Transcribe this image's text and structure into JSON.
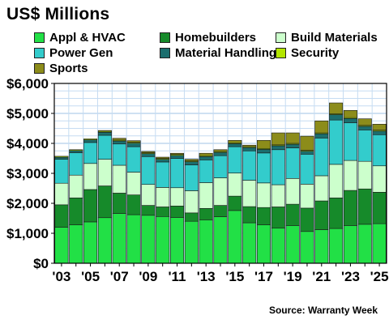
{
  "chart_data": {
    "type": "bar",
    "stacked": true,
    "title": "US$ Millions",
    "source": "Source: Warranty Week",
    "ylim": [
      0,
      6000
    ],
    "yticks": [
      0,
      1000,
      2000,
      3000,
      4000,
      5000,
      6000
    ],
    "ytick_labels": [
      "$0",
      "$1,000",
      "$2,000",
      "$3,000",
      "$4,000",
      "$5,000",
      "$6,000"
    ],
    "grid": true,
    "categories": [
      "2003",
      "2004",
      "2005",
      "2006",
      "2007",
      "2008",
      "2009",
      "2010",
      "2011",
      "2012",
      "2013",
      "2014",
      "2015",
      "2016",
      "2017",
      "2018",
      "2019",
      "2020",
      "2021",
      "2022",
      "2023",
      "2024",
      "2025"
    ],
    "xtick_labels": [
      "'03",
      "",
      "'05",
      "",
      "'07",
      "",
      "'09",
      "",
      "'11",
      "",
      "'13",
      "",
      "'15",
      "",
      "'17",
      "",
      "'19",
      "",
      "'21",
      "",
      "'23",
      "",
      "'25"
    ],
    "series": [
      {
        "name": "Appl & HVAC",
        "color": "#22e046",
        "values": [
          1200,
          1280,
          1380,
          1520,
          1660,
          1620,
          1600,
          1560,
          1530,
          1400,
          1450,
          1550,
          1760,
          1350,
          1280,
          1170,
          1260,
          1060,
          1120,
          1160,
          1260,
          1300,
          1320
        ]
      },
      {
        "name": "Homebuilders",
        "color": "#168a2a",
        "values": [
          750,
          900,
          1080,
          1060,
          680,
          660,
          330,
          320,
          380,
          280,
          380,
          380,
          480,
          540,
          580,
          710,
          710,
          780,
          960,
          1020,
          1170,
          1180,
          1050
        ]
      },
      {
        "name": "Build Materials",
        "color": "#ccffcc",
        "values": [
          720,
          760,
          870,
          890,
          930,
          760,
          700,
          650,
          610,
          740,
          860,
          920,
          770,
          880,
          820,
          740,
          860,
          800,
          840,
          1120,
          1000,
          920,
          880
        ]
      },
      {
        "name": "Power Gen",
        "color": "#33cccc",
        "values": [
          800,
          750,
          700,
          800,
          710,
          850,
          930,
          850,
          980,
          860,
          760,
          740,
          880,
          980,
          1000,
          1170,
          1020,
          1000,
          1260,
          1480,
          1260,
          1050,
          1040
        ]
      },
      {
        "name": "Material Handling",
        "color": "#1b6e6e",
        "values": [
          70,
          70,
          90,
          100,
          100,
          120,
          100,
          90,
          100,
          110,
          110,
          110,
          100,
          110,
          120,
          130,
          120,
          100,
          140,
          180,
          140,
          120,
          120
        ]
      },
      {
        "name": "Security",
        "color": "#b3e600",
        "values": [
          30,
          30,
          30,
          30,
          30,
          30,
          30,
          30,
          30,
          30,
          30,
          30,
          30,
          30,
          30,
          30,
          30,
          30,
          30,
          30,
          30,
          30,
          30
        ]
      },
      {
        "name": "Sports",
        "color": "#8c8c1a",
        "values": [
          0,
          0,
          0,
          30,
          60,
          50,
          40,
          40,
          40,
          50,
          80,
          60,
          80,
          50,
          270,
          400,
          350,
          470,
          400,
          360,
          240,
          220,
          200
        ]
      }
    ]
  }
}
